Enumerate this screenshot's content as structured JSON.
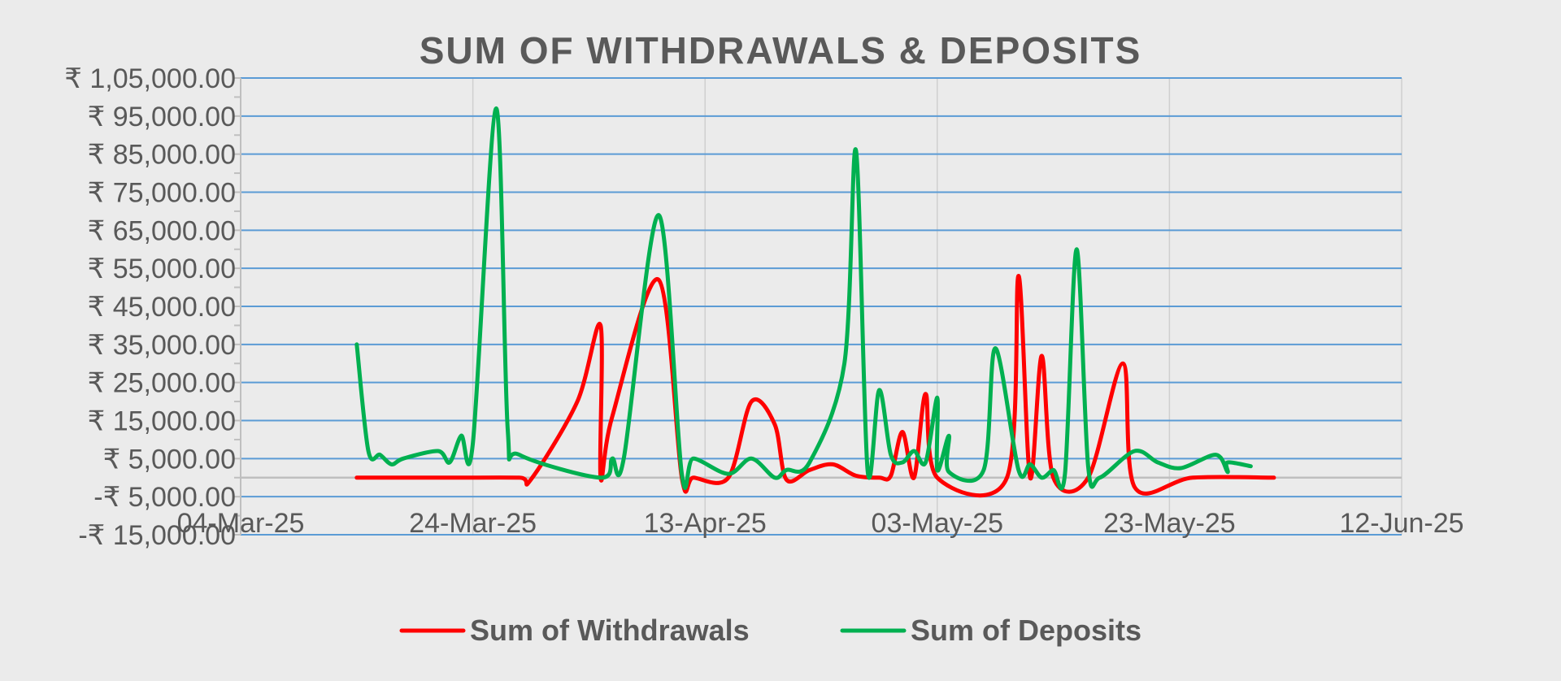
{
  "chart_data": {
    "type": "line",
    "title": "SUM OF WITHDRAWALS & DEPOSITS",
    "xlabel": "",
    "ylabel": "",
    "x_tick_labels": [
      "04-Mar-25",
      "24-Mar-25",
      "13-Apr-25",
      "03-May-25",
      "23-May-25",
      "12-Jun-25"
    ],
    "x_range": [
      "2025-03-04",
      "2025-06-12"
    ],
    "y_tick_values": [
      105000,
      95000,
      85000,
      75000,
      65000,
      55000,
      45000,
      35000,
      25000,
      15000,
      5000,
      -5000,
      -15000
    ],
    "y_tick_labels": [
      "₹ 1,05,000.00",
      "₹ 95,000.00",
      "₹ 85,000.00",
      "₹ 75,000.00",
      "₹ 65,000.00",
      "₹ 55,000.00",
      "₹ 45,000.00",
      "₹ 35,000.00",
      "₹ 25,000.00",
      "₹ 15,000.00",
      "₹ 5,000.00",
      "-₹ 5,000.00",
      "-₹ 15,000.00"
    ],
    "ylim": [
      -15000,
      105000
    ],
    "grid": "on",
    "legend_position": "bottom",
    "series": [
      {
        "name": "Sum of Withdrawals",
        "color": "#ff0000",
        "points": [
          [
            "2025-03-14",
            0
          ],
          [
            "2025-03-22",
            0
          ],
          [
            "2025-03-28",
            0
          ],
          [
            "2025-03-29",
            -500
          ],
          [
            "2025-04-02",
            20000
          ],
          [
            "2025-04-04",
            40000
          ],
          [
            "2025-04-04",
            0
          ],
          [
            "2025-04-05",
            16000
          ],
          [
            "2025-04-09",
            52000
          ],
          [
            "2025-04-11",
            0
          ],
          [
            "2025-04-12",
            0
          ],
          [
            "2025-04-15",
            0
          ],
          [
            "2025-04-17",
            20000
          ],
          [
            "2025-04-19",
            14000
          ],
          [
            "2025-04-20",
            -500
          ],
          [
            "2025-04-22",
            2000
          ],
          [
            "2025-04-24",
            3500
          ],
          [
            "2025-04-26",
            500
          ],
          [
            "2025-04-28",
            0
          ],
          [
            "2025-04-29",
            500
          ],
          [
            "2025-04-30",
            12000
          ],
          [
            "2025-05-01",
            0
          ],
          [
            "2025-05-02",
            22000
          ],
          [
            "2025-05-03",
            0
          ],
          [
            "2025-05-09",
            0
          ],
          [
            "2025-05-10",
            53000
          ],
          [
            "2025-05-11",
            0
          ],
          [
            "2025-05-12",
            32000
          ],
          [
            "2025-05-13",
            0
          ],
          [
            "2025-05-16",
            0
          ],
          [
            "2025-05-19",
            30000
          ],
          [
            "2025-05-20",
            -2500
          ],
          [
            "2025-05-25",
            0
          ],
          [
            "2025-06-01",
            0
          ]
        ]
      },
      {
        "name": "Sum of Deposits",
        "color": "#00b050",
        "points": [
          [
            "2025-03-14",
            35000
          ],
          [
            "2025-03-15",
            7000
          ],
          [
            "2025-03-16",
            6000
          ],
          [
            "2025-03-17",
            3500
          ],
          [
            "2025-03-18",
            5000
          ],
          [
            "2025-03-21",
            7000
          ],
          [
            "2025-03-22",
            4000
          ],
          [
            "2025-03-23",
            11000
          ],
          [
            "2025-03-24",
            9000
          ],
          [
            "2025-03-26",
            97000
          ],
          [
            "2025-03-27",
            13000
          ],
          [
            "2025-03-28",
            6000
          ],
          [
            "2025-04-04",
            0
          ],
          [
            "2025-04-05",
            5000
          ],
          [
            "2025-04-06",
            5000
          ],
          [
            "2025-04-09",
            69000
          ],
          [
            "2025-04-11",
            1000
          ],
          [
            "2025-04-12",
            5000
          ],
          [
            "2025-04-15",
            1000
          ],
          [
            "2025-04-17",
            5000
          ],
          [
            "2025-04-19",
            0
          ],
          [
            "2025-04-20",
            2000
          ],
          [
            "2025-04-22",
            4000
          ],
          [
            "2025-04-25",
            30000
          ],
          [
            "2025-04-26",
            86000
          ],
          [
            "2025-04-27",
            2000
          ],
          [
            "2025-04-28",
            23000
          ],
          [
            "2025-04-29",
            6000
          ],
          [
            "2025-04-30",
            4000
          ],
          [
            "2025-05-01",
            7000
          ],
          [
            "2025-05-02",
            4000
          ],
          [
            "2025-05-03",
            21000
          ],
          [
            "2025-05-03",
            2000
          ],
          [
            "2025-05-04",
            11000
          ],
          [
            "2025-05-04",
            1500
          ],
          [
            "2025-05-07",
            2000
          ],
          [
            "2025-05-08",
            34000
          ],
          [
            "2025-05-10",
            2000
          ],
          [
            "2025-05-11",
            3500
          ],
          [
            "2025-05-12",
            0
          ],
          [
            "2025-05-13",
            2000
          ],
          [
            "2025-05-14",
            1000
          ],
          [
            "2025-05-15",
            60000
          ],
          [
            "2025-05-16",
            3000
          ],
          [
            "2025-05-17",
            0
          ],
          [
            "2025-05-20",
            7000
          ],
          [
            "2025-05-22",
            4000
          ],
          [
            "2025-05-24",
            2500
          ],
          [
            "2025-05-27",
            6000
          ],
          [
            "2025-05-28",
            1500
          ],
          [
            "2025-05-28",
            4000
          ],
          [
            "2025-05-30",
            3000
          ]
        ]
      }
    ]
  }
}
